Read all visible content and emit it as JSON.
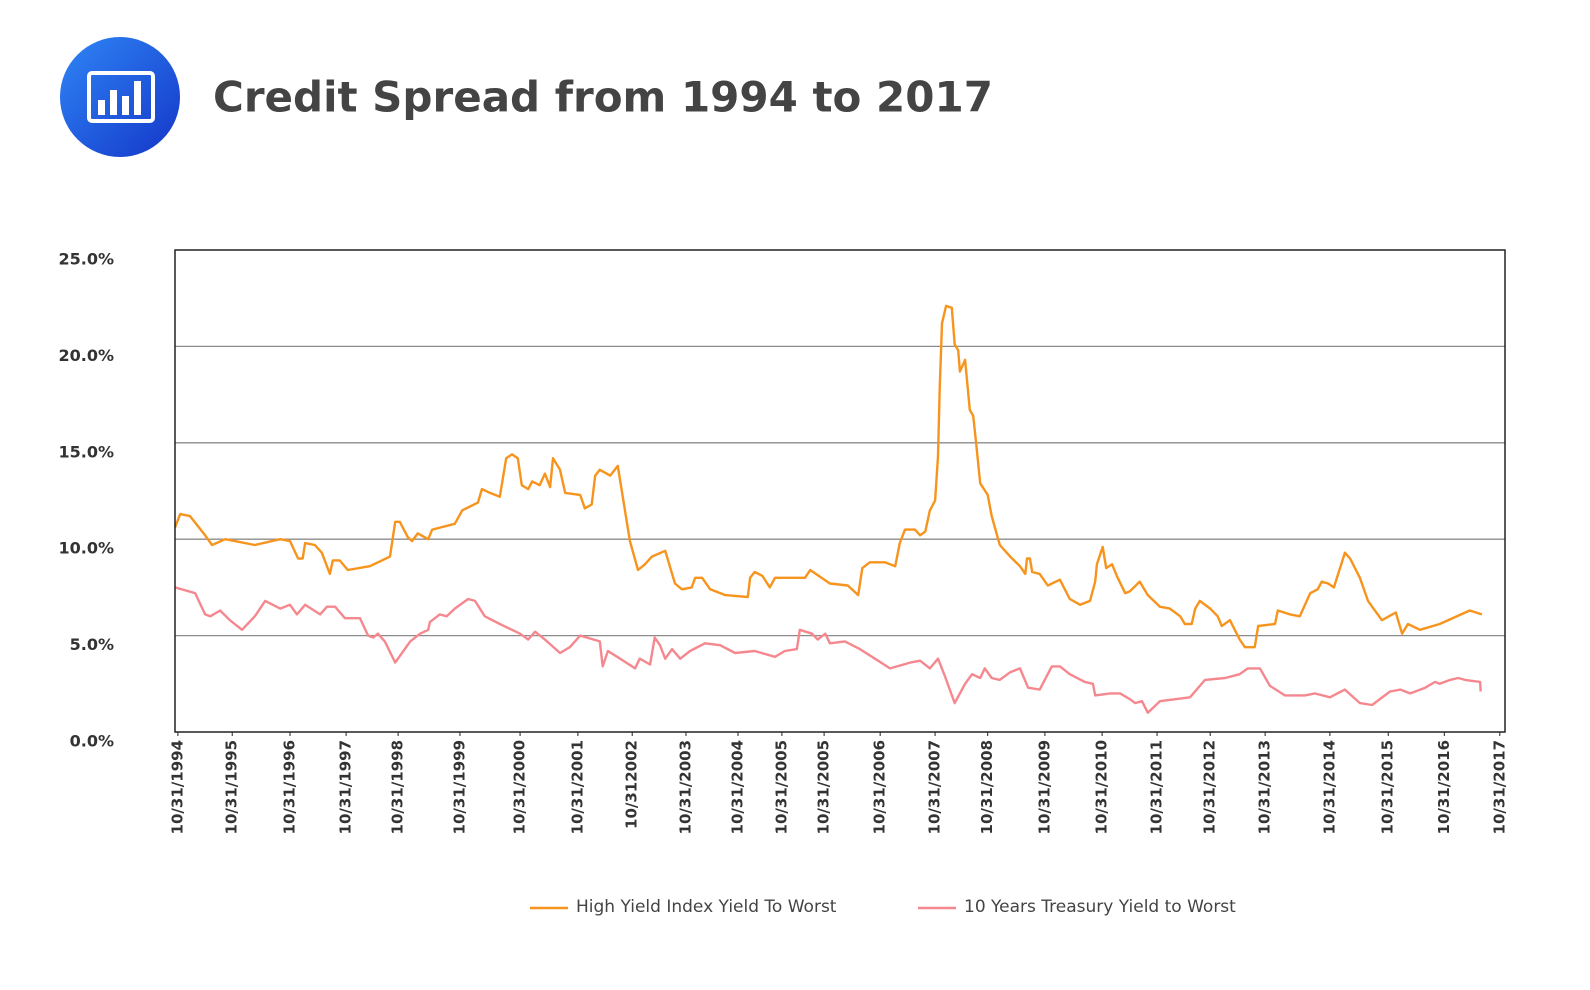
{
  "chart_data": {
    "type": "line",
    "title": "Credit Spread from 1994 to 2017",
    "xlim": [
      1994.8,
      2017.81
    ],
    "ylim": [
      0,
      25
    ],
    "grid": true,
    "legend": "bottom",
    "yticks": [
      {
        "value": 0,
        "label": "0.0%"
      },
      {
        "value": 5,
        "label": "5.0%"
      },
      {
        "value": 10,
        "label": "10.0%"
      },
      {
        "value": 15,
        "label": "15.0%"
      },
      {
        "value": 20,
        "label": "20.0%"
      },
      {
        "value": 25,
        "label": "25.0%"
      }
    ],
    "xticks": [
      {
        "value": 1994.85,
        "label": "10/31/1994"
      },
      {
        "value": 1995.79,
        "label": "10/31/1995"
      },
      {
        "value": 1996.79,
        "label": "10/31/1996"
      },
      {
        "value": 1997.76,
        "label": "10/31/1997"
      },
      {
        "value": 1998.66,
        "label": "10/31/1998"
      },
      {
        "value": 1999.73,
        "label": "10/31/1999"
      },
      {
        "value": 2000.77,
        "label": "10/31/2000"
      },
      {
        "value": 2001.77,
        "label": "10/31/2001"
      },
      {
        "value": 2002.71,
        "label": "10/312002"
      },
      {
        "value": 2003.64,
        "label": "10/31/2003"
      },
      {
        "value": 2004.54,
        "label": "10/31/2004"
      },
      {
        "value": 2005.3,
        "label": "10/31/2005"
      },
      {
        "value": 2006.03,
        "label": "10/31/2005"
      },
      {
        "value": 2007.0,
        "label": "10/31/2006"
      },
      {
        "value": 2007.95,
        "label": "10/31/2007"
      },
      {
        "value": 2008.86,
        "label": "10/31/2008"
      },
      {
        "value": 2009.85,
        "label": "10/31/2009"
      },
      {
        "value": 2010.84,
        "label": "10/31/2010"
      },
      {
        "value": 2011.79,
        "label": "10/31/2011"
      },
      {
        "value": 2012.71,
        "label": "10/31/2012"
      },
      {
        "value": 2013.66,
        "label": "10/31/2013"
      },
      {
        "value": 2014.78,
        "label": "10/31/2014"
      },
      {
        "value": 2015.79,
        "label": "10/31/2015"
      },
      {
        "value": 2016.76,
        "label": "10/31/2016"
      },
      {
        "value": 2017.72,
        "label": "10/31/2017"
      }
    ],
    "series": [
      {
        "name": "High Yield Index Yield To Worst",
        "color": "#f7941d",
        "x": [
          1994.8,
          1994.89,
          1995.06,
          1995.32,
          1995.44,
          1995.67,
          1996.18,
          1996.62,
          1996.79,
          1996.93,
          1997.01,
          1997.05,
          1997.22,
          1997.34,
          1997.48,
          1997.53,
          1997.65,
          1997.79,
          1998.17,
          1998.52,
          1998.61,
          1998.69,
          1998.83,
          1998.9,
          1999.0,
          1999.18,
          1999.25,
          1999.64,
          1999.77,
          2000.04,
          2000.11,
          2000.25,
          2000.42,
          2000.53,
          2000.63,
          2000.73,
          2000.8,
          2000.91,
          2000.98,
          2001.11,
          2001.2,
          2001.29,
          2001.34,
          2001.46,
          2001.55,
          2001.81,
          2001.89,
          2002.01,
          2002.07,
          2002.15,
          2002.33,
          2002.46,
          2002.67,
          2002.81,
          2002.93,
          2003.05,
          2003.28,
          2003.45,
          2003.57,
          2003.74,
          2003.8,
          2003.92,
          2004.06,
          2004.32,
          2004.71,
          2004.75,
          2004.83,
          2004.96,
          2005.09,
          2005.18,
          2005.44,
          2005.7,
          2005.79,
          2006.13,
          2006.44,
          2006.62,
          2006.69,
          2006.82,
          2007.08,
          2007.26,
          2007.34,
          2007.43,
          2007.6,
          2007.69,
          2007.78,
          2007.86,
          2007.95,
          2008.0,
          2008.03,
          2008.07,
          2008.14,
          2008.24,
          2008.29,
          2008.35,
          2008.38,
          2008.47,
          2008.55,
          2008.61,
          2008.66,
          2008.73,
          2008.86,
          2008.93,
          2009.07,
          2009.25,
          2009.42,
          2009.51,
          2009.54,
          2009.59,
          2009.63,
          2009.76,
          2009.9,
          2010.11,
          2010.28,
          2010.46,
          2010.63,
          2010.72,
          2010.75,
          2010.85,
          2010.91,
          2011.01,
          2011.11,
          2011.24,
          2011.32,
          2011.49,
          2011.63,
          2011.84,
          2012.01,
          2012.19,
          2012.27,
          2012.39,
          2012.45,
          2012.53,
          2012.71,
          2012.84,
          2012.91,
          2013.05,
          2013.22,
          2013.31,
          2013.48,
          2013.54,
          2013.83,
          2013.88,
          2014.09,
          2014.26,
          2014.44,
          2014.57,
          2014.64,
          2014.75,
          2014.85,
          2015.04,
          2015.13,
          2015.3,
          2015.44,
          2015.68,
          2015.92,
          2016.03,
          2016.13,
          2016.34,
          2016.68,
          2017.2,
          2017.41
        ],
        "values": [
          10.6,
          11.3,
          11.2,
          10.2,
          9.7,
          10.0,
          9.7,
          10.0,
          9.9,
          9.0,
          9.0,
          9.8,
          9.7,
          9.3,
          8.2,
          8.9,
          8.9,
          8.4,
          8.6,
          9.1,
          10.9,
          10.9,
          10.1,
          9.9,
          10.3,
          10.0,
          10.5,
          10.8,
          11.5,
          11.9,
          12.6,
          12.4,
          12.2,
          14.2,
          14.4,
          14.2,
          12.8,
          12.6,
          13.0,
          12.8,
          13.4,
          12.7,
          14.2,
          13.6,
          12.4,
          12.3,
          11.6,
          11.8,
          13.3,
          13.6,
          13.3,
          13.8,
          9.9,
          8.4,
          8.7,
          9.1,
          9.4,
          7.7,
          7.4,
          7.5,
          8.0,
          8.0,
          7.4,
          7.1,
          7.0,
          8.0,
          8.3,
          8.1,
          7.5,
          8.0,
          8.0,
          8.0,
          8.4,
          7.7,
          7.6,
          7.1,
          8.5,
          8.8,
          8.8,
          8.6,
          9.8,
          10.5,
          10.5,
          10.2,
          10.4,
          11.5,
          12.0,
          14.3,
          17.8,
          21.2,
          22.1,
          22.0,
          20.1,
          19.8,
          18.7,
          19.3,
          16.7,
          16.4,
          15.0,
          12.9,
          12.3,
          11.2,
          9.7,
          9.1,
          8.6,
          8.2,
          9.0,
          9.0,
          8.3,
          8.2,
          7.6,
          7.9,
          6.9,
          6.6,
          6.8,
          7.8,
          8.7,
          9.6,
          8.5,
          8.7,
          8.0,
          7.2,
          7.3,
          7.8,
          7.1,
          6.5,
          6.4,
          6.0,
          5.6,
          5.6,
          6.4,
          6.8,
          6.4,
          6.0,
          5.5,
          5.8,
          4.8,
          4.4,
          4.4,
          5.5,
          5.6,
          6.3,
          6.1,
          6.0,
          7.2,
          7.4,
          7.8,
          7.7,
          7.5,
          9.3,
          9.0,
          8.0,
          6.8,
          5.8,
          6.2,
          5.1,
          5.6,
          5.3,
          5.6,
          6.3,
          6.1
        ]
      },
      {
        "name": "10 Years Treasury Yield to Worst",
        "color": "#f5888f",
        "x": [
          1994.8,
          1995.15,
          1995.32,
          1995.41,
          1995.58,
          1995.75,
          1995.96,
          1996.18,
          1996.36,
          1996.62,
          1996.79,
          1996.91,
          1997.05,
          1997.31,
          1997.43,
          1997.57,
          1997.74,
          1998.0,
          1998.14,
          1998.23,
          1998.31,
          1998.43,
          1998.61,
          1998.87,
          1999.04,
          1999.18,
          1999.21,
          1999.38,
          1999.5,
          1999.64,
          1999.87,
          1999.99,
          2000.16,
          2000.42,
          2000.77,
          2000.91,
          2001.03,
          2001.2,
          2001.46,
          2001.63,
          2001.81,
          2002.15,
          2002.2,
          2002.29,
          2002.5,
          2002.76,
          2002.84,
          2003.02,
          2003.1,
          2003.19,
          2003.28,
          2003.4,
          2003.54,
          2003.71,
          2003.97,
          2004.23,
          2004.49,
          2004.83,
          2005.18,
          2005.35,
          2005.56,
          2005.61,
          2005.82,
          2005.92,
          2006.05,
          2006.13,
          2006.39,
          2006.65,
          2006.91,
          2007.17,
          2007.52,
          2007.69,
          2007.86,
          2008.0,
          2008.12,
          2008.29,
          2008.47,
          2008.59,
          2008.73,
          2008.81,
          2008.93,
          2009.07,
          2009.25,
          2009.42,
          2009.56,
          2009.76,
          2009.97,
          2010.11,
          2010.28,
          2010.54,
          2010.68,
          2010.72,
          2010.98,
          2011.15,
          2011.32,
          2011.41,
          2011.53,
          2011.63,
          2011.84,
          2012.36,
          2012.62,
          2012.97,
          2013.22,
          2013.36,
          2013.57,
          2013.74,
          2014.0,
          2014.35,
          2014.52,
          2014.78,
          2015.04,
          2015.3,
          2015.51,
          2015.82,
          2016.0,
          2016.17,
          2016.43,
          2016.6,
          2016.68,
          2016.86,
          2017.0,
          2017.12,
          2017.38,
          2017.39
        ],
        "values": [
          7.5,
          7.2,
          6.1,
          6.0,
          6.3,
          5.8,
          5.3,
          6.0,
          6.8,
          6.4,
          6.6,
          6.1,
          6.6,
          6.1,
          6.5,
          6.5,
          5.9,
          5.9,
          5.0,
          4.9,
          5.1,
          4.7,
          3.6,
          4.7,
          5.1,
          5.3,
          5.7,
          6.1,
          6.0,
          6.4,
          6.9,
          6.8,
          6.0,
          5.6,
          5.1,
          4.8,
          5.2,
          4.8,
          4.1,
          4.4,
          5.0,
          4.7,
          3.4,
          4.2,
          3.8,
          3.3,
          3.8,
          3.5,
          4.9,
          4.5,
          3.8,
          4.3,
          3.8,
          4.2,
          4.6,
          4.5,
          4.1,
          4.2,
          3.9,
          4.2,
          4.3,
          5.3,
          5.1,
          4.8,
          5.1,
          4.6,
          4.7,
          4.3,
          3.8,
          3.3,
          3.6,
          3.7,
          3.3,
          3.8,
          2.9,
          1.5,
          2.5,
          3.0,
          2.8,
          3.3,
          2.8,
          2.7,
          3.1,
          3.3,
          2.3,
          2.2,
          3.4,
          3.4,
          3.0,
          2.6,
          2.5,
          1.9,
          2.0,
          2.0,
          1.7,
          1.5,
          1.6,
          1.0,
          1.6,
          1.8,
          2.7,
          2.8,
          3.0,
          3.3,
          3.3,
          2.4,
          1.9,
          1.9,
          2.0,
          1.8,
          2.2,
          1.5,
          1.4,
          2.1,
          2.2,
          2.0,
          2.3,
          2.6,
          2.5,
          2.7,
          2.8,
          2.7,
          2.6,
          2.1
        ]
      }
    ]
  }
}
